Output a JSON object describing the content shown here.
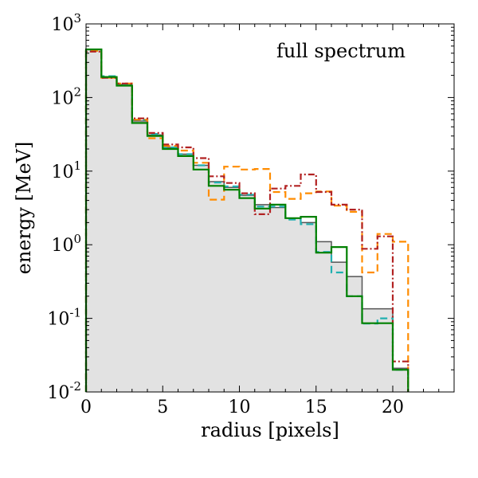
{
  "chart_data": {
    "type": "step",
    "title": "",
    "annotation": "full spectrum",
    "xlabel": "radius [pixels]",
    "ylabel": "energy [MeV]",
    "xlim": [
      0,
      24
    ],
    "ylim": [
      0.01,
      1000
    ],
    "yscale": "log",
    "grid": false,
    "x_ticks": [
      0,
      5,
      10,
      15,
      20
    ],
    "x_tick_labels": [
      "0",
      "5",
      "10",
      "15",
      "20"
    ],
    "y_ticks": [
      0.01,
      0.1,
      1,
      10,
      100,
      1000
    ],
    "y_tick_labels": [
      {
        "base": "10",
        "exp": "-2"
      },
      {
        "base": "10",
        "exp": "-1"
      },
      {
        "base": "10",
        "exp": "0"
      },
      {
        "base": "10",
        "exp": "1"
      },
      {
        "base": "10",
        "exp": "2"
      },
      {
        "base": "10",
        "exp": "3"
      }
    ],
    "bin_edges": [
      0,
      1,
      2,
      3,
      4,
      5,
      6,
      7,
      8,
      9,
      10,
      11,
      12,
      13,
      14,
      15,
      16,
      17,
      18,
      19,
      20,
      21
    ],
    "series": [
      {
        "name": "reference (filled)",
        "style": "filled",
        "color": "#555555",
        "fill": "#e2e2e2",
        "values": [
          450,
          190,
          150,
          48,
          31,
          21,
          17,
          12,
          7.2,
          6.0,
          4.7,
          3.5,
          3.2,
          2.3,
          2.0,
          1.1,
          0.58,
          0.37,
          0.135,
          0.135,
          0.021
        ]
      },
      {
        "name": "cyan dashed",
        "style": "dashed",
        "color": "#20b0b0",
        "values": [
          440,
          195,
          150,
          50,
          32,
          21,
          17,
          12,
          7.0,
          6.2,
          4.8,
          3.3,
          3.3,
          2.2,
          1.9,
          0.8,
          0.42,
          0.2,
          0.085,
          0.1,
          0.02
        ]
      },
      {
        "name": "orange dashed",
        "style": "dashed",
        "color": "#ff8c00",
        "values": [
          430,
          185,
          155,
          50,
          28,
          22,
          19,
          13,
          4.1,
          11.5,
          10.5,
          10.7,
          5.2,
          4.2,
          5.0,
          5.3,
          3.4,
          2.8,
          0.42,
          1.4,
          1.1
        ]
      },
      {
        "name": "red dash-dot",
        "style": "dashdot",
        "color": "#b22222",
        "values": [
          420,
          185,
          155,
          52,
          33,
          23,
          21,
          15,
          8.5,
          6.9,
          5.0,
          2.6,
          5.8,
          6.3,
          9.0,
          5.2,
          3.5,
          3.0,
          0.88,
          1.3,
          0.026
        ]
      },
      {
        "name": "green solid",
        "style": "solid",
        "color": "#008000",
        "values": [
          450,
          190,
          145,
          45,
          30,
          20,
          16,
          10.5,
          6.3,
          5.6,
          4.3,
          3.1,
          3.5,
          2.3,
          2.4,
          0.78,
          0.93,
          0.2,
          0.086,
          0.086,
          0.02
        ]
      }
    ]
  }
}
